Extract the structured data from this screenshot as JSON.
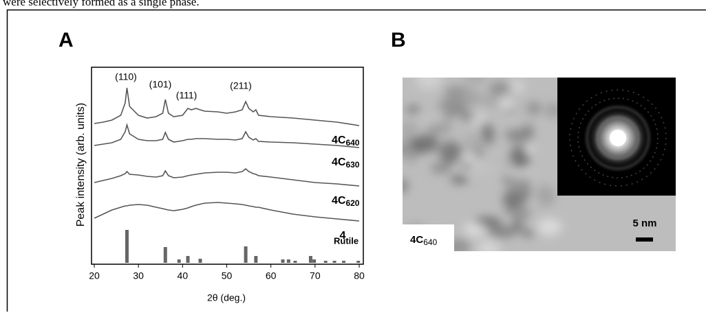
{
  "header_text": "were selectively formed as a single phase.",
  "chart_data": {
    "type": "line",
    "panel_label": "A",
    "x_label": "2θ (deg.)",
    "y_label": "Peak intensity (arb. units)",
    "xlim": [
      20,
      80
    ],
    "xticks": [
      20,
      30,
      40,
      50,
      60,
      70,
      80
    ],
    "ylim": [
      0,
      287
    ],
    "annotations": [
      "(110)",
      "(101)",
      "(111)",
      "(211)"
    ],
    "x": [
      20,
      22,
      24,
      26,
      27,
      27.4,
      28,
      30,
      32,
      34,
      35.5,
      36.1,
      36.8,
      38,
      40,
      41.2,
      42,
      43,
      45,
      48,
      50,
      52,
      53.5,
      54.3,
      55,
      56,
      56.6,
      57.2,
      60,
      65,
      70,
      75,
      80
    ],
    "series": [
      {
        "name": "4C",
        "name_sub": "640",
        "color": "#555555",
        "values": [
          205,
          207,
          210,
          217,
          235,
          257,
          230,
          217,
          213,
          215,
          220,
          240,
          220,
          215,
          217,
          227,
          225,
          227,
          223,
          222,
          220,
          222,
          225,
          237,
          227,
          222,
          225,
          217,
          215,
          213,
          210,
          207,
          202
        ]
      },
      {
        "name": "4C",
        "name_sub": "630",
        "color": "#555555",
        "values": [
          173,
          175,
          177,
          182,
          193,
          203,
          190,
          182,
          180,
          180,
          182,
          192,
          182,
          178,
          180,
          182,
          182,
          183,
          183,
          182,
          182,
          181,
          183,
          193,
          185,
          181,
          183,
          179,
          178,
          177,
          175,
          173,
          170
        ]
      },
      {
        "name": "4C",
        "name_sub": "620",
        "color": "#555555",
        "values": [
          119,
          122,
          125,
          129,
          132,
          135,
          131,
          130,
          128,
          127,
          129,
          136,
          129,
          126,
          127,
          129,
          130,
          131,
          133,
          134,
          134,
          133,
          135,
          139,
          135,
          132,
          131,
          129,
          127,
          123,
          119,
          117,
          114
        ]
      },
      {
        "name": "4",
        "color": "#555555",
        "values": [
          67,
          73,
          79,
          83,
          85,
          85,
          86,
          87,
          86,
          83,
          81,
          80,
          79,
          78,
          80,
          82,
          84,
          86,
          89,
          90,
          89,
          88,
          87,
          86,
          85,
          84,
          83,
          83,
          79,
          73,
          69,
          66,
          63
        ]
      }
    ],
    "reference": {
      "name": "Rutile",
      "color": "#666666",
      "x": [
        27.4,
        36.1,
        39.2,
        41.2,
        44,
        54.3,
        56.6,
        62.7,
        64,
        65.5,
        69,
        69.8,
        72.4,
        74.4,
        76.5,
        79.8
      ],
      "values": [
        48,
        23,
        5,
        10,
        6,
        24,
        10,
        5,
        5,
        3,
        10,
        5,
        3,
        3,
        3,
        3
      ]
    }
  },
  "panel_b": {
    "panel_label": "B",
    "image_label": "4C",
    "image_label_sub": "640",
    "scale_bar": "5 nm"
  }
}
